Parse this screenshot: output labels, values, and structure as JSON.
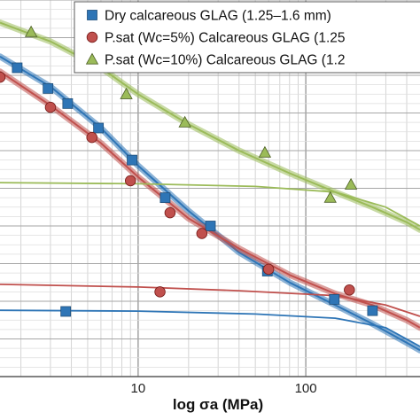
{
  "chart_data": {
    "type": "scatter",
    "x_scale": "log",
    "xlabel": "log σa (MPa)",
    "ylabel": "",
    "xlim": [
      1.5,
      480
    ],
    "ylim": [
      0,
      100
    ],
    "grid": true,
    "legend_position": "top-right",
    "x_ticks": [
      {
        "value": 10,
        "label": "10"
      },
      {
        "value": 100,
        "label": "100"
      }
    ],
    "series": [
      {
        "name": "Dry calcareous GLAG (1.25–1.6 mm)",
        "color": "#2e75b6",
        "marker": "square",
        "points": [
          [
            1.9,
            82
          ],
          [
            2.9,
            76.5
          ],
          [
            3.8,
            72.5
          ],
          [
            5.8,
            66
          ],
          [
            9.2,
            57.5
          ],
          [
            14.5,
            47.5
          ],
          [
            27,
            40
          ],
          [
            59,
            28
          ],
          [
            148,
            20.5
          ],
          [
            250,
            17.5
          ]
        ],
        "curve": [
          [
            1.5,
            85
          ],
          [
            3,
            77
          ],
          [
            6,
            66
          ],
          [
            10,
            56
          ],
          [
            20,
            44
          ],
          [
            40,
            33
          ],
          [
            80,
            25
          ],
          [
            150,
            19
          ],
          [
            250,
            14
          ],
          [
            400,
            9
          ],
          [
            480,
            7
          ]
        ],
        "lower_curve": [
          [
            1.5,
            17.6
          ],
          [
            10,
            17.4
          ],
          [
            50,
            16.6
          ],
          [
            150,
            15.5
          ],
          [
            300,
            13
          ],
          [
            480,
            8
          ]
        ],
        "lower_points": [
          [
            3.7,
            17.3
          ]
        ]
      },
      {
        "name": "P.sat (Wc=5%) Calcareous GLAG (1.25",
        "color": "#c0504d",
        "marker": "circle",
        "points": [
          [
            1.5,
            79.5
          ],
          [
            3.0,
            71.5
          ],
          [
            5.3,
            63.5
          ],
          [
            9.0,
            52
          ],
          [
            15.5,
            43.5
          ],
          [
            24,
            38
          ],
          [
            60,
            28.5
          ],
          [
            182,
            23
          ]
        ],
        "curve": [
          [
            1.5,
            81
          ],
          [
            3,
            72
          ],
          [
            6,
            62
          ],
          [
            10,
            53
          ],
          [
            20,
            42
          ],
          [
            40,
            34
          ],
          [
            80,
            27
          ],
          [
            150,
            22
          ],
          [
            250,
            19
          ],
          [
            400,
            15
          ],
          [
            480,
            13
          ]
        ],
        "lower_curve": [
          [
            1.5,
            24.5
          ],
          [
            10,
            23.8
          ],
          [
            40,
            22.8
          ],
          [
            150,
            21.5
          ],
          [
            300,
            19
          ],
          [
            480,
            16
          ]
        ],
        "lower_points": [
          [
            13.5,
            22.5
          ]
        ]
      },
      {
        "name": "P.sat (Wc=10%) Calcareous GLAG (1.2",
        "color": "#9bbb59",
        "marker": "triangle",
        "points": [
          [
            2.3,
            91.5
          ],
          [
            4.5,
            85
          ],
          [
            8.5,
            75
          ],
          [
            19,
            67.5
          ],
          [
            57,
            59.5
          ],
          [
            140,
            47.5
          ],
          [
            186,
            51
          ]
        ],
        "curve": [
          [
            1.5,
            94
          ],
          [
            3,
            89
          ],
          [
            6,
            82
          ],
          [
            10,
            75
          ],
          [
            20,
            67
          ],
          [
            40,
            60
          ],
          [
            80,
            54
          ],
          [
            150,
            49
          ],
          [
            250,
            45
          ],
          [
            400,
            41
          ],
          [
            480,
            39
          ]
        ],
        "lower_curve": [
          [
            1.5,
            51.5
          ],
          [
            10,
            51.2
          ],
          [
            50,
            50.5
          ],
          [
            150,
            49
          ],
          [
            300,
            45
          ],
          [
            480,
            40
          ]
        ],
        "lower_points": []
      }
    ]
  }
}
